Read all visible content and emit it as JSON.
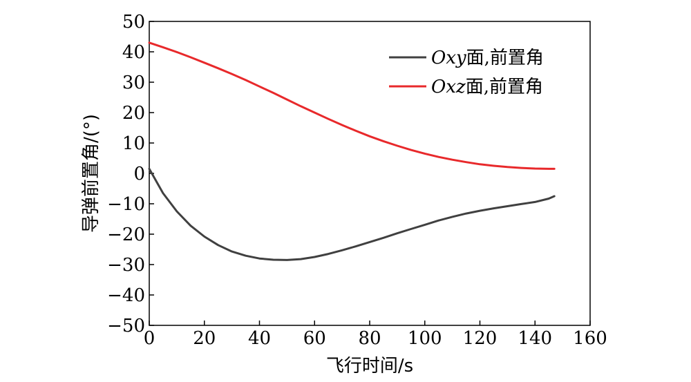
{
  "chart_data": {
    "type": "line",
    "title": "",
    "xlabel": "飞行时间/s",
    "ylabel": "导弹前置角/(°)",
    "xlim": [
      0,
      160
    ],
    "ylim": [
      -50,
      50
    ],
    "xticks": [
      0,
      20,
      40,
      60,
      80,
      100,
      120,
      140,
      160
    ],
    "yticks": [
      50,
      40,
      30,
      20,
      10,
      0,
      -10,
      -20,
      -30,
      -40,
      -50
    ],
    "xtick_labels": [
      "0",
      "20",
      "40",
      "60",
      "80",
      "100",
      "120",
      "140",
      "160"
    ],
    "ytick_labels": [
      "50",
      "40",
      "30",
      "20",
      "10",
      "0",
      "−10",
      "−20",
      "−30",
      "−40",
      "−50"
    ],
    "grid": false,
    "legend_position": "top-right",
    "series": [
      {
        "name": "Oxy面,前置角",
        "name_italic": "Oxy",
        "name_rest": "面,前置角",
        "color": "#404040",
        "x": [
          0,
          5,
          10,
          15,
          20,
          25,
          30,
          35,
          40,
          45,
          50,
          55,
          60,
          65,
          70,
          75,
          80,
          85,
          90,
          95,
          100,
          105,
          110,
          115,
          120,
          125,
          130,
          135,
          140,
          145,
          147
        ],
        "y": [
          1.5,
          -6.5,
          -12.5,
          -17.2,
          -20.8,
          -23.6,
          -25.7,
          -27.1,
          -28.0,
          -28.4,
          -28.5,
          -28.2,
          -27.5,
          -26.5,
          -25.3,
          -24.0,
          -22.6,
          -21.2,
          -19.7,
          -18.3,
          -16.9,
          -15.5,
          -14.3,
          -13.2,
          -12.3,
          -11.5,
          -10.8,
          -10.1,
          -9.4,
          -8.3,
          -7.5
        ]
      },
      {
        "name": "Oxz面,前置角",
        "name_italic": "Oxz",
        "name_rest": "面,前置角",
        "color": "#e8292b",
        "x": [
          0,
          5,
          10,
          15,
          20,
          25,
          30,
          35,
          40,
          45,
          50,
          55,
          60,
          65,
          70,
          75,
          80,
          85,
          90,
          95,
          100,
          105,
          110,
          115,
          120,
          125,
          130,
          135,
          140,
          145,
          147
        ],
        "y": [
          43.0,
          41.5,
          39.9,
          38.2,
          36.4,
          34.6,
          32.7,
          30.7,
          28.6,
          26.5,
          24.3,
          22.1,
          20.0,
          17.9,
          15.9,
          14.0,
          12.2,
          10.6,
          9.1,
          7.7,
          6.5,
          5.4,
          4.5,
          3.7,
          3.0,
          2.5,
          2.1,
          1.8,
          1.6,
          1.5,
          1.5
        ]
      }
    ]
  }
}
